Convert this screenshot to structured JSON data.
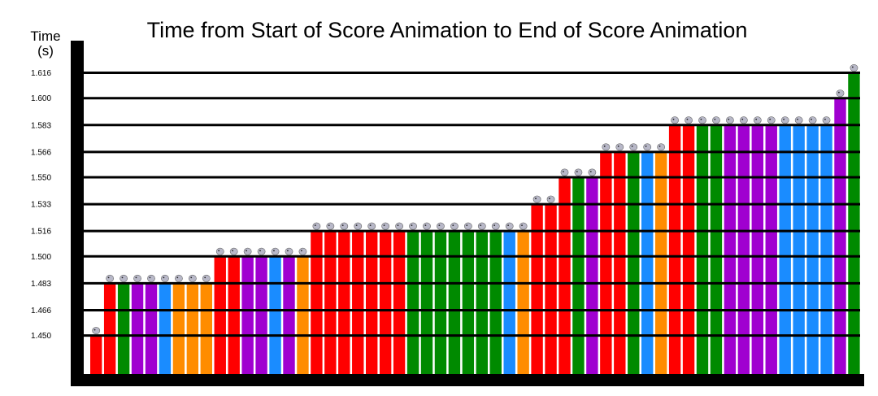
{
  "chart_data": {
    "type": "bar",
    "title": "Time from Start of Score Animation to End of Score Animation",
    "ylabel_line1": "Time",
    "ylabel_line2": "(s)",
    "xlabel": "",
    "ylim": [
      1.433,
      1.633
    ],
    "yticks": [
      "1.450",
      "1.466",
      "1.483",
      "1.500",
      "1.516",
      "1.533",
      "1.550",
      "1.566",
      "1.583",
      "1.600",
      "1.616"
    ],
    "grid": true,
    "colors": {
      "red": "#ff0000",
      "green": "#008a00",
      "purple": "#a000d0",
      "blue": "#1a8cff",
      "orange": "#ff8c00",
      "axis": "#000000"
    },
    "bars": [
      {
        "value": 1.45,
        "color": "red"
      },
      {
        "value": 1.483,
        "color": "red"
      },
      {
        "value": 1.483,
        "color": "green"
      },
      {
        "value": 1.483,
        "color": "purple"
      },
      {
        "value": 1.483,
        "color": "purple"
      },
      {
        "value": 1.483,
        "color": "blue"
      },
      {
        "value": 1.483,
        "color": "orange"
      },
      {
        "value": 1.483,
        "color": "orange"
      },
      {
        "value": 1.483,
        "color": "orange"
      },
      {
        "value": 1.5,
        "color": "red"
      },
      {
        "value": 1.5,
        "color": "red"
      },
      {
        "value": 1.5,
        "color": "purple"
      },
      {
        "value": 1.5,
        "color": "purple"
      },
      {
        "value": 1.5,
        "color": "blue"
      },
      {
        "value": 1.5,
        "color": "purple"
      },
      {
        "value": 1.5,
        "color": "orange"
      },
      {
        "value": 1.516,
        "color": "red"
      },
      {
        "value": 1.516,
        "color": "red"
      },
      {
        "value": 1.516,
        "color": "red"
      },
      {
        "value": 1.516,
        "color": "red"
      },
      {
        "value": 1.516,
        "color": "red"
      },
      {
        "value": 1.516,
        "color": "red"
      },
      {
        "value": 1.516,
        "color": "red"
      },
      {
        "value": 1.516,
        "color": "green"
      },
      {
        "value": 1.516,
        "color": "green"
      },
      {
        "value": 1.516,
        "color": "green"
      },
      {
        "value": 1.516,
        "color": "green"
      },
      {
        "value": 1.516,
        "color": "green"
      },
      {
        "value": 1.516,
        "color": "green"
      },
      {
        "value": 1.516,
        "color": "green"
      },
      {
        "value": 1.516,
        "color": "blue"
      },
      {
        "value": 1.516,
        "color": "orange"
      },
      {
        "value": 1.533,
        "color": "red"
      },
      {
        "value": 1.533,
        "color": "red"
      },
      {
        "value": 1.55,
        "color": "red"
      },
      {
        "value": 1.55,
        "color": "green"
      },
      {
        "value": 1.55,
        "color": "purple"
      },
      {
        "value": 1.566,
        "color": "red"
      },
      {
        "value": 1.566,
        "color": "red"
      },
      {
        "value": 1.566,
        "color": "green"
      },
      {
        "value": 1.566,
        "color": "blue"
      },
      {
        "value": 1.566,
        "color": "orange"
      },
      {
        "value": 1.583,
        "color": "red"
      },
      {
        "value": 1.583,
        "color": "red"
      },
      {
        "value": 1.583,
        "color": "green"
      },
      {
        "value": 1.583,
        "color": "green"
      },
      {
        "value": 1.583,
        "color": "purple"
      },
      {
        "value": 1.583,
        "color": "purple"
      },
      {
        "value": 1.583,
        "color": "purple"
      },
      {
        "value": 1.583,
        "color": "purple"
      },
      {
        "value": 1.583,
        "color": "blue"
      },
      {
        "value": 1.583,
        "color": "blue"
      },
      {
        "value": 1.583,
        "color": "blue"
      },
      {
        "value": 1.583,
        "color": "blue"
      },
      {
        "value": 1.6,
        "color": "purple"
      },
      {
        "value": 1.616,
        "color": "green"
      }
    ]
  }
}
